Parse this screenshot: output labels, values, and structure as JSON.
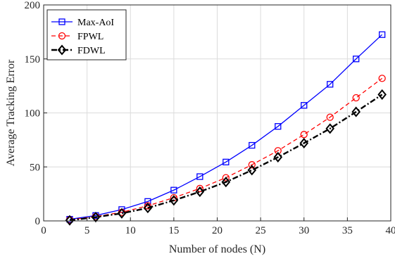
{
  "chart_data": {
    "type": "line",
    "title": "",
    "xlabel": "Number of nodes (N)",
    "ylabel": "Average Tracking Error",
    "xlim": [
      0,
      40
    ],
    "ylim": [
      0,
      200
    ],
    "xticks": [
      0,
      5,
      10,
      15,
      20,
      25,
      30,
      35,
      40
    ],
    "yticks": [
      0,
      50,
      100,
      150,
      200
    ],
    "xtick_labels": [
      "0",
      "5",
      "10",
      "15",
      "20",
      "25",
      "30",
      "35",
      "40"
    ],
    "ytick_labels": [
      "0",
      "50",
      "100",
      "150",
      "200"
    ],
    "grid": true,
    "legend_position": "top-left",
    "x": [
      3,
      6,
      9,
      12,
      15,
      18,
      21,
      24,
      27,
      30,
      33,
      36,
      39
    ],
    "series": [
      {
        "name": "Max-AoI",
        "color": "#0000ff",
        "marker": "square",
        "line_style": "solid",
        "values": [
          1.5,
          5,
          10.5,
          18,
          28.5,
          41,
          54.5,
          70,
          87.5,
          107,
          126.5,
          150,
          172.5
        ]
      },
      {
        "name": "FPWL",
        "color": "#ff0000",
        "marker": "circle",
        "line_style": "dashed",
        "values": [
          1,
          4,
          8,
          14,
          21.5,
          30,
          40,
          52,
          65,
          80,
          96,
          114,
          132
        ]
      },
      {
        "name": "FDWL",
        "color": "#000000",
        "marker": "diamond",
        "line_style": "dash-dot",
        "values": [
          0.5,
          3.5,
          7,
          12,
          19,
          27,
          36,
          47,
          59,
          72,
          85.5,
          101,
          117
        ]
      }
    ]
  }
}
